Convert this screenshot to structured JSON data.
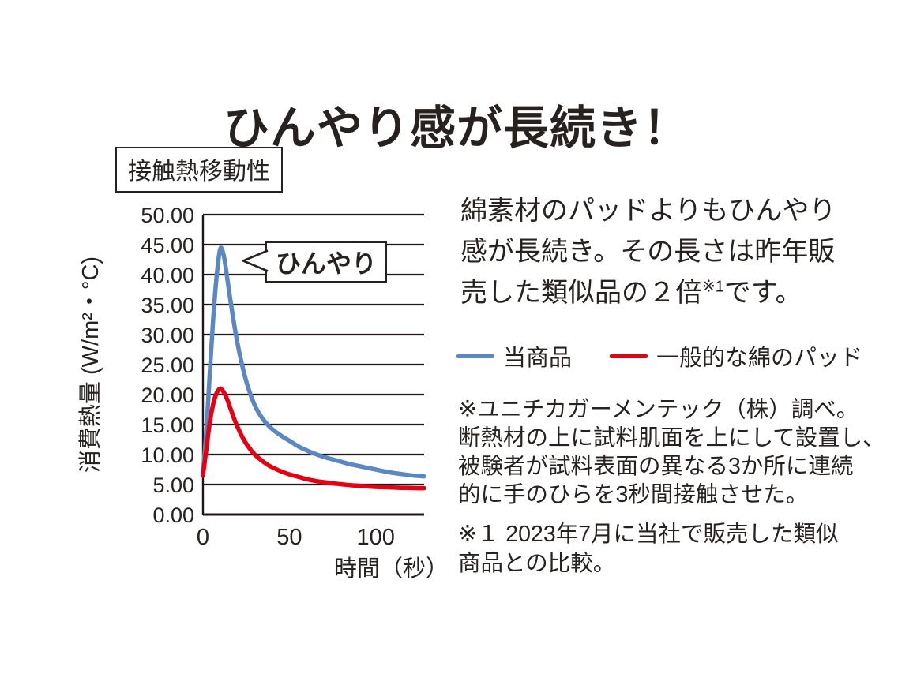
{
  "title": "ひんやり感が長続き！",
  "chart_label": "接触熱移動性",
  "annotation": "ひんやり",
  "description": {
    "line1": "綿素材のパッドよりもひんやり",
    "line2": "感が長続き。その長さは昨年販",
    "line3_pre": "売した類似品の２倍",
    "line3_sup": "※1",
    "line3_post": "です。"
  },
  "notes": {
    "method_lines": [
      "※ユニチカガーメンテック（株）調べ。",
      "断熱材の上に試料肌面を上にして設置し、",
      "被験者が試料表面の異なる3か所に連続",
      "的に手のひらを3秒間接触させた。"
    ],
    "comparison_lines": [
      "※１ 2023年7月に当社で販売した類似",
      "商品との比較。"
    ]
  },
  "colors": {
    "ink": "#272220",
    "grid": "#1d1715",
    "product_blue": "#5b87c3",
    "cotton_red": "#e60012"
  },
  "chart_data": {
    "type": "line",
    "title": "接触熱移動性",
    "xlabel": "時間（秒）",
    "ylabel": "消費熱量 (W/m²・°C)",
    "xlim": [
      0,
      128
    ],
    "ylim": [
      0,
      50
    ],
    "grid": "horizontal, every 5 units",
    "legend_position": "right panel",
    "y_tick_labels": [
      "50.00",
      "45.00",
      "40.00",
      "35.00",
      "30.00",
      "25.00",
      "20.00",
      "15.00",
      "10.00",
      "5.00",
      "0.00"
    ],
    "x_ticks": [
      {
        "value": 0,
        "label": "0"
      },
      {
        "value": 50,
        "label": "50"
      },
      {
        "value": 100,
        "label": "100"
      }
    ],
    "annotation": {
      "text": "ひんやり",
      "points_at": "peak of 当商品 curve (≈44.5 W/m²·°C at ≈10 s)"
    },
    "x": [
      0,
      2,
      4,
      6,
      8,
      10,
      12,
      14,
      16,
      18,
      20,
      23,
      26,
      30,
      34,
      38,
      42,
      46,
      50,
      55,
      60,
      65,
      70,
      75,
      80,
      85,
      90,
      95,
      100,
      105,
      110,
      115,
      120,
      124,
      128
    ],
    "series": [
      {
        "name": "当商品",
        "color": "#5b87c3",
        "peak": {
          "x": 10,
          "y": 44.3
        },
        "values": [
          7,
          14,
          24,
          33,
          40,
          44.3,
          43.2,
          39.5,
          35.5,
          31.8,
          28.5,
          24.5,
          21.3,
          18.2,
          16.2,
          14.8,
          13.8,
          13,
          12.3,
          11.4,
          10.7,
          10.1,
          9.6,
          9.2,
          8.8,
          8.4,
          8.1,
          7.8,
          7.5,
          7.2,
          6.95,
          6.75,
          6.55,
          6.45,
          6.35
        ]
      },
      {
        "name": "一般的な綿のパッド",
        "color": "#e60012",
        "peak": {
          "x": 10,
          "y": 21
        },
        "values": [
          6.5,
          11,
          15.5,
          18.5,
          20.3,
          21,
          20.4,
          19.2,
          17.6,
          16,
          14.6,
          12.8,
          11.4,
          10,
          9,
          8.2,
          7.6,
          7.1,
          6.7,
          6.3,
          5.9,
          5.6,
          5.4,
          5.2,
          5.05,
          4.9,
          4.8,
          4.7,
          4.6,
          4.55,
          4.5,
          4.45,
          4.42,
          4.4,
          4.4
        ]
      }
    ]
  }
}
